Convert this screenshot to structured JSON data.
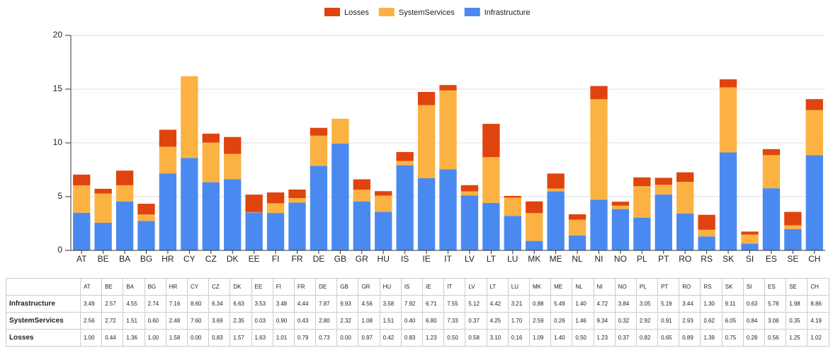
{
  "chart_data": {
    "type": "stacked-bar",
    "categories": [
      "AT",
      "BE",
      "BA",
      "BG",
      "HR",
      "CY",
      "CZ",
      "DK",
      "EE",
      "FI",
      "FR",
      "DE",
      "GB",
      "GR",
      "HU",
      "IS",
      "IE",
      "IT",
      "LV",
      "LT",
      "LU",
      "MK",
      "ME",
      "NL",
      "NI",
      "NO",
      "PL",
      "PT",
      "RO",
      "RS",
      "SK",
      "SI",
      "ES",
      "SE",
      "CH"
    ],
    "series": [
      {
        "name": "Infrastructure",
        "color": "#4a8af0",
        "values": [
          3.49,
          2.57,
          4.55,
          2.74,
          7.16,
          8.6,
          6.34,
          6.63,
          3.53,
          3.48,
          4.44,
          7.87,
          9.93,
          4.56,
          3.58,
          7.92,
          6.71,
          7.55,
          5.12,
          4.42,
          3.21,
          0.88,
          5.49,
          1.4,
          4.72,
          3.84,
          3.05,
          5.19,
          3.44,
          1.3,
          9.11,
          0.63,
          5.78,
          1.98,
          8.86
        ],
        "value_labels": [
          "3.49",
          "2.57",
          "4.55",
          "2.74",
          "7.16",
          "8.60",
          "6.34",
          "6.63",
          "3.53",
          "3.48",
          "4.44",
          "7.87",
          "9.93",
          "4.56",
          "3.58",
          "7.92",
          "6.71",
          "7.55",
          "5.12",
          "4.42",
          "3.21",
          "0.88",
          "5.49",
          "1.40",
          "4.72",
          "3.84",
          "3.05",
          "5.19",
          "3.44",
          "1.30",
          "9.11",
          "0.63",
          "5.78",
          "1.98",
          "8.86"
        ]
      },
      {
        "name": "SystemServices",
        "color": "#fbb243",
        "values": [
          2.56,
          2.72,
          1.51,
          0.6,
          2.48,
          7.6,
          3.69,
          2.35,
          0.03,
          0.9,
          0.43,
          2.8,
          2.32,
          1.08,
          1.51,
          0.4,
          6.8,
          7.33,
          0.37,
          4.25,
          1.7,
          2.59,
          0.26,
          1.46,
          9.34,
          0.32,
          2.92,
          0.91,
          2.93,
          0.62,
          6.05,
          0.84,
          3.08,
          0.35,
          4.19
        ],
        "value_labels": [
          "2.56",
          "2.72",
          "1.51",
          "0.60",
          "2.48",
          "7.60",
          "3.69",
          "2.35",
          "0.03",
          "0.90",
          "0.43",
          "2.80",
          "2.32",
          "1.08",
          "1.51",
          "0.40",
          "6.80",
          "7.33",
          "0.37",
          "4.25",
          "1.70",
          "2.59",
          "0.26",
          "1.46",
          "9.34",
          "0.32",
          "2.92",
          "0.91",
          "2.93",
          "0.62",
          "6.05",
          "0.84",
          "3.08",
          "0.35",
          "4.19"
        ]
      },
      {
        "name": "Losses",
        "color": "#e0440e",
        "values": [
          1.0,
          0.44,
          1.36,
          1.0,
          1.58,
          0.0,
          0.83,
          1.57,
          1.63,
          1.01,
          0.79,
          0.73,
          0.0,
          0.97,
          0.42,
          0.83,
          1.23,
          0.5,
          0.58,
          3.1,
          0.16,
          1.09,
          1.4,
          0.5,
          1.23,
          0.37,
          0.82,
          0.65,
          0.89,
          1.39,
          0.75,
          0.28,
          0.56,
          1.25,
          1.02
        ],
        "value_labels": [
          "1.00",
          "0.44",
          "1.36",
          "1.00",
          "1.58",
          "0.00",
          "0.83",
          "1.57",
          "1.63",
          "1.01",
          "0.79",
          "0.73",
          "0.00",
          "0.97",
          "0.42",
          "0.83",
          "1.23",
          "0.50",
          "0.58",
          "3.10",
          "0.16",
          "1.09",
          "1.40",
          "0.50",
          "1.23",
          "0.37",
          "0.82",
          "0.65",
          "0.89",
          "1.39",
          "0.75",
          "0.28",
          "0.56",
          "1.25",
          "1.02"
        ]
      }
    ],
    "ylim": [
      0,
      20
    ],
    "yticks": [
      0,
      5,
      10,
      15,
      20
    ],
    "grid": true,
    "legend": "top"
  }
}
